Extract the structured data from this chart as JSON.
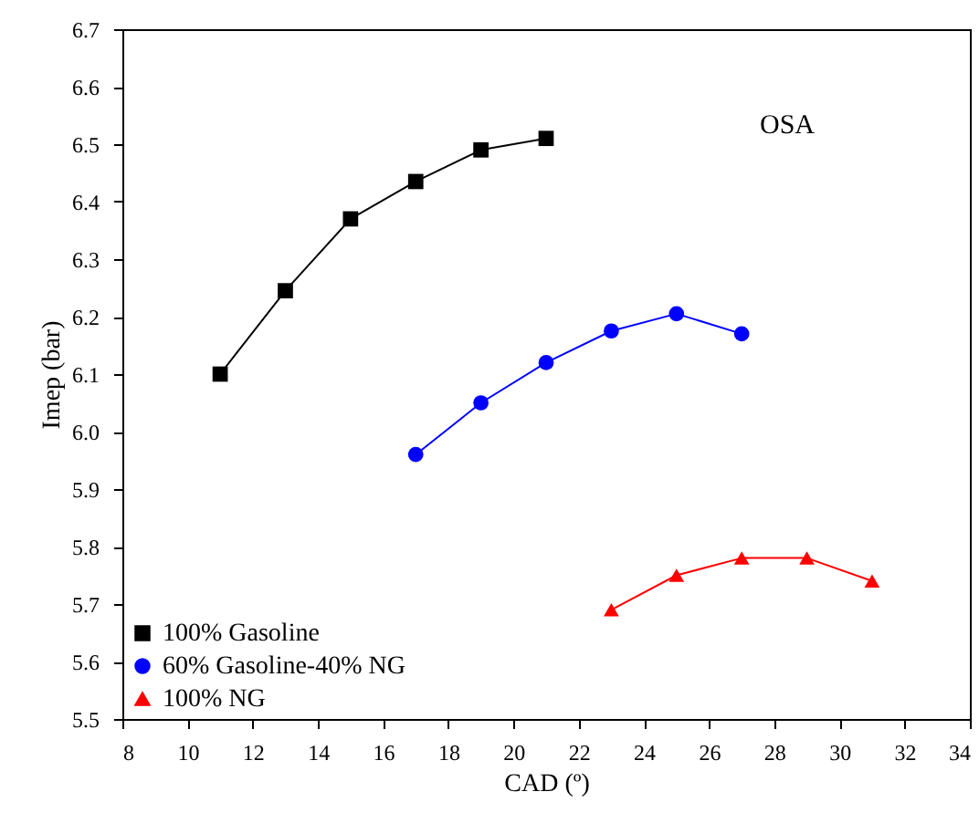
{
  "chart_data": {
    "type": "line",
    "xlabel": "CAD (º)",
    "ylabel": "Imep (bar)",
    "xlim": [
      8,
      34
    ],
    "xticks": [
      8,
      10,
      12,
      14,
      16,
      18,
      20,
      22,
      24,
      26,
      28,
      30,
      32,
      34
    ],
    "ylim": [
      5.5,
      6.7
    ],
    "yticks": [
      5.5,
      5.6,
      5.7,
      5.8,
      5.9,
      {
        "value": 6,
        "label": "6.0"
      },
      6.1,
      6.2,
      6.3,
      6.4,
      6.5,
      6.6,
      6.7
    ],
    "grid": false,
    "legend": "bottom left",
    "annotations": [
      "OSA"
    ],
    "series": [
      {
        "name": "100% Gasoline",
        "color": "#000000",
        "marker": "square",
        "x": [
          11,
          13,
          15,
          17,
          19,
          21
        ],
        "values": [
          6.1,
          6.245,
          6.37,
          6.435,
          6.49,
          6.51
        ]
      },
      {
        "name": "60% Gasoline-40% NG",
        "color": "#0000ff",
        "marker": "circle",
        "x": [
          17,
          19,
          21,
          23,
          25,
          27
        ],
        "values": [
          5.96,
          6.05,
          6.12,
          6.175,
          6.205,
          6.17
        ]
      },
      {
        "name": "100% NG",
        "color": "#ff0000",
        "marker": "triangle",
        "x": [
          23,
          25,
          27,
          29,
          31
        ],
        "values": [
          5.69,
          5.75,
          5.78,
          5.78,
          5.74
        ]
      }
    ]
  }
}
